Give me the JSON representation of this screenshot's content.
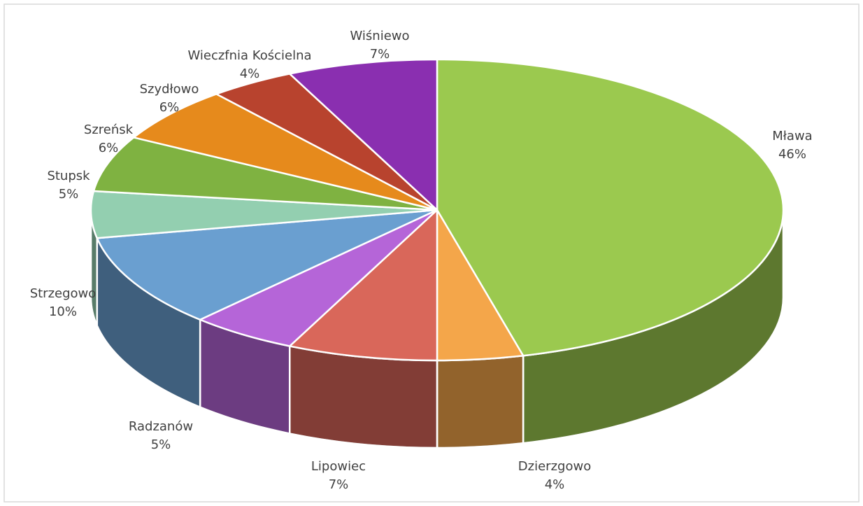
{
  "chart_data": {
    "type": "pie3d",
    "categories": [
      "Mława",
      "Dzierzgowo",
      "Lipowiec",
      "Radzanów",
      "Strzegowo",
      "Stupsk",
      "Szreńsk",
      "Szydłowo",
      "Wieczfnia Kościelna",
      "Wiśniewo"
    ],
    "values": [
      46,
      4,
      7,
      5,
      10,
      5,
      6,
      6,
      4,
      7
    ],
    "value_labels": [
      "46%",
      "4%",
      "7%",
      "5%",
      "10%",
      "5%",
      "6%",
      "6%",
      "4%",
      "7%"
    ],
    "colors": [
      "#9bc94f",
      "#f4a64a",
      "#d9675a",
      "#b565d8",
      "#6a9fd0",
      "#93cfb0",
      "#7fb241",
      "#e68a1c",
      "#b8432e",
      "#8a2fb0"
    ]
  }
}
